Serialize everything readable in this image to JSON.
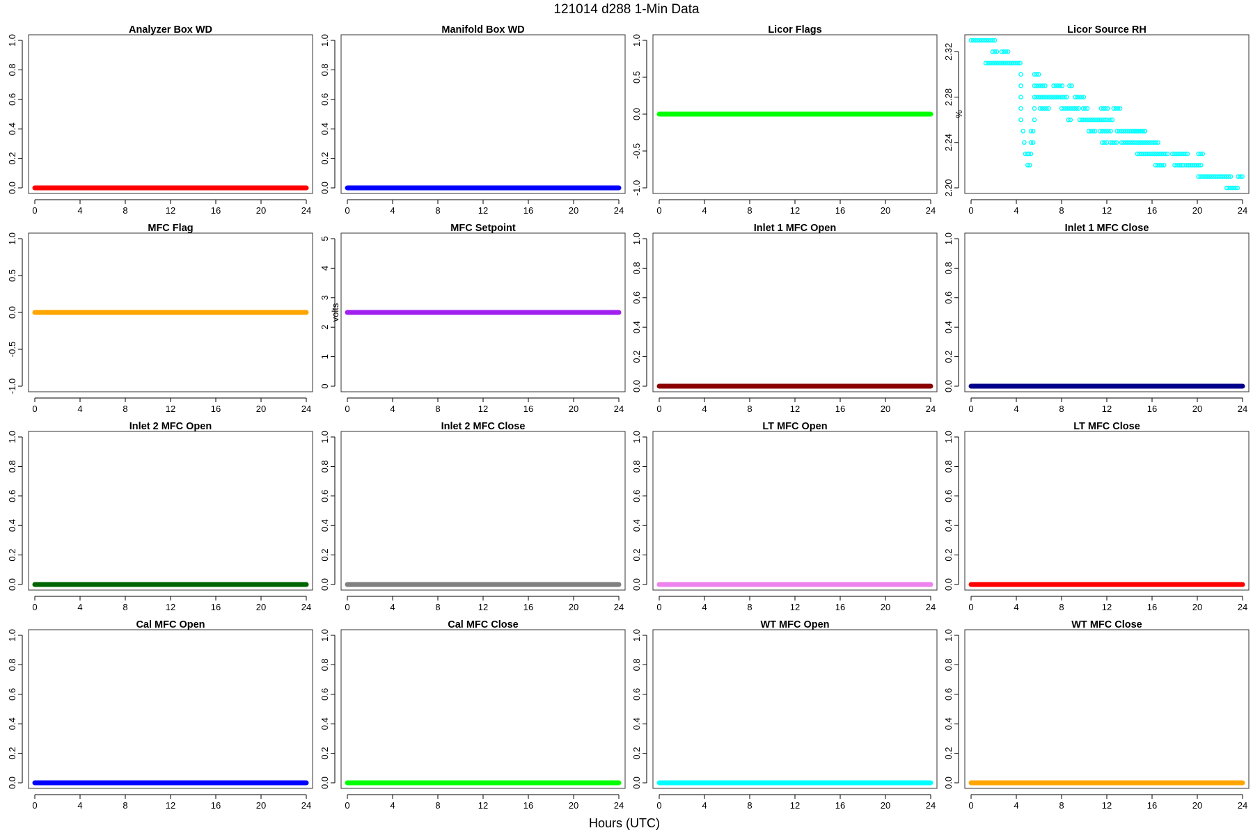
{
  "figure": {
    "title": "121014   d288   1-Min Data",
    "xlabel": "Hours (UTC)"
  },
  "chart_data": [
    {
      "type": "line",
      "title": "Analyzer Box WD",
      "ylabel": "",
      "color": "#ff0000",
      "xlim": [
        0,
        24
      ],
      "xticks": [
        0,
        4,
        8,
        12,
        16,
        20,
        24
      ],
      "ylim": [
        0,
        1
      ],
      "yticks": [
        "0.0",
        "0.2",
        "0.4",
        "0.6",
        "0.8",
        "1.0"
      ],
      "series": [
        {
          "x": [
            0,
            24
          ],
          "y": [
            0,
            0
          ]
        }
      ]
    },
    {
      "type": "line",
      "title": "Manifold Box WD",
      "ylabel": "",
      "color": "#0000ff",
      "xlim": [
        0,
        24
      ],
      "xticks": [
        0,
        4,
        8,
        12,
        16,
        20,
        24
      ],
      "ylim": [
        0,
        1
      ],
      "yticks": [
        "0.0",
        "0.2",
        "0.4",
        "0.6",
        "0.8",
        "1.0"
      ],
      "series": [
        {
          "x": [
            0,
            24
          ],
          "y": [
            0,
            0
          ]
        }
      ]
    },
    {
      "type": "line",
      "title": "Licor Flags",
      "ylabel": "",
      "color": "#00ff00",
      "xlim": [
        0,
        24
      ],
      "xticks": [
        0,
        4,
        8,
        12,
        16,
        20,
        24
      ],
      "ylim": [
        -1,
        1
      ],
      "yticks": [
        "-1.0",
        "-0.5",
        "0.0",
        "0.5",
        "1.0"
      ],
      "series": [
        {
          "x": [
            0,
            24
          ],
          "y": [
            0,
            0
          ]
        }
      ]
    },
    {
      "type": "scatter",
      "title": "Licor Source RH",
      "ylabel": "%",
      "color": "#00ffff",
      "xlim": [
        0,
        24
      ],
      "xticks": [
        0,
        4,
        8,
        12,
        16,
        20,
        24
      ],
      "ylim": [
        2.2,
        2.33
      ],
      "yticks": [
        "2.20",
        "2.24",
        "2.28",
        "2.32"
      ],
      "segments": [
        [
          0,
          2.2,
          2.33
        ],
        [
          1.9,
          2.4,
          2.32
        ],
        [
          2.7,
          3.3,
          2.32
        ],
        [
          1.3,
          4.5,
          2.31
        ],
        [
          4.4,
          4.5,
          2.3
        ],
        [
          5.6,
          6.1,
          2.3
        ],
        [
          4.4,
          4.5,
          2.29
        ],
        [
          5.6,
          6.6,
          2.29
        ],
        [
          7.3,
          8.1,
          2.29
        ],
        [
          8.7,
          9.0,
          2.29
        ],
        [
          4.4,
          4.5,
          2.28
        ],
        [
          5.6,
          8.6,
          2.28
        ],
        [
          9.2,
          10.0,
          2.28
        ],
        [
          4.4,
          4.5,
          2.27
        ],
        [
          5.6,
          5.7,
          2.27
        ],
        [
          6.1,
          7.0,
          2.27
        ],
        [
          8.0,
          9.6,
          2.27
        ],
        [
          9.9,
          10.4,
          2.27
        ],
        [
          11.5,
          12.1,
          2.27
        ],
        [
          12.6,
          13.3,
          2.27
        ],
        [
          4.4,
          4.5,
          2.26
        ],
        [
          5.6,
          5.7,
          2.26
        ],
        [
          8.6,
          8.9,
          2.26
        ],
        [
          9.6,
          12.1,
          2.26
        ],
        [
          12.3,
          12.6,
          2.26
        ],
        [
          4.6,
          4.7,
          2.25
        ],
        [
          5.3,
          5.5,
          2.25
        ],
        [
          10.4,
          11.0,
          2.25
        ],
        [
          11.4,
          12.4,
          2.25
        ],
        [
          12.9,
          15.4,
          2.25
        ],
        [
          14.4,
          15.4,
          2.25
        ],
        [
          4.7,
          4.8,
          2.24
        ],
        [
          5.3,
          5.5,
          2.24
        ],
        [
          11.6,
          12.0,
          2.24
        ],
        [
          12.3,
          13.0,
          2.24
        ],
        [
          13.3,
          16.6,
          2.24
        ],
        [
          4.8,
          5.0,
          2.23
        ],
        [
          5.1,
          5.4,
          2.23
        ],
        [
          14.7,
          17.5,
          2.23
        ],
        [
          17.8,
          19.3,
          2.23
        ],
        [
          20.1,
          20.5,
          2.23
        ],
        [
          5.0,
          5.2,
          2.22
        ],
        [
          16.3,
          17.2,
          2.22
        ],
        [
          18.0,
          18.8,
          2.22
        ],
        [
          19.0,
          20.4,
          2.22
        ],
        [
          20.1,
          23.0,
          2.21
        ],
        [
          23.6,
          24.0,
          2.21
        ],
        [
          22.6,
          23.6,
          2.2
        ]
      ]
    },
    {
      "type": "line",
      "title": "MFC Flag",
      "ylabel": "",
      "color": "#ffa500",
      "xlim": [
        0,
        24
      ],
      "xticks": [
        0,
        4,
        8,
        12,
        16,
        20,
        24
      ],
      "ylim": [
        -1,
        1
      ],
      "yticks": [
        "-1.0",
        "-0.5",
        "0.0",
        "0.5",
        "1.0"
      ],
      "series": [
        {
          "x": [
            0,
            24
          ],
          "y": [
            0,
            0
          ]
        }
      ]
    },
    {
      "type": "line",
      "title": "MFC Setpoint",
      "ylabel": "volts",
      "color": "#a020f0",
      "xlim": [
        0,
        24
      ],
      "xticks": [
        0,
        4,
        8,
        12,
        16,
        20,
        24
      ],
      "ylim": [
        0,
        5
      ],
      "yticks": [
        "0",
        "1",
        "2",
        "3",
        "4",
        "5"
      ],
      "series": [
        {
          "x": [
            0,
            24
          ],
          "y": [
            2.5,
            2.5
          ]
        }
      ]
    },
    {
      "type": "line",
      "title": "Inlet 1 MFC Open",
      "ylabel": "",
      "color": "#8b0000",
      "xlim": [
        0,
        24
      ],
      "xticks": [
        0,
        4,
        8,
        12,
        16,
        20,
        24
      ],
      "ylim": [
        0,
        1
      ],
      "yticks": [
        "0.0",
        "0.2",
        "0.4",
        "0.6",
        "0.8",
        "1.0"
      ],
      "series": [
        {
          "x": [
            0,
            24
          ],
          "y": [
            0,
            0
          ]
        }
      ]
    },
    {
      "type": "line",
      "title": "Inlet 1 MFC Close",
      "ylabel": "",
      "color": "#00008b",
      "xlim": [
        0,
        24
      ],
      "xticks": [
        0,
        4,
        8,
        12,
        16,
        20,
        24
      ],
      "ylim": [
        0,
        1
      ],
      "yticks": [
        "0.0",
        "0.2",
        "0.4",
        "0.6",
        "0.8",
        "1.0"
      ],
      "series": [
        {
          "x": [
            0,
            24
          ],
          "y": [
            0,
            0
          ]
        }
      ]
    },
    {
      "type": "line",
      "title": "Inlet 2 MFC Open",
      "ylabel": "",
      "color": "#006400",
      "xlim": [
        0,
        24
      ],
      "xticks": [
        0,
        4,
        8,
        12,
        16,
        20,
        24
      ],
      "ylim": [
        0,
        1
      ],
      "yticks": [
        "0.0",
        "0.2",
        "0.4",
        "0.6",
        "0.8",
        "1.0"
      ],
      "series": [
        {
          "x": [
            0,
            24
          ],
          "y": [
            0,
            0
          ]
        }
      ]
    },
    {
      "type": "line",
      "title": "Inlet 2 MFC Close",
      "ylabel": "",
      "color": "#808080",
      "xlim": [
        0,
        24
      ],
      "xticks": [
        0,
        4,
        8,
        12,
        16,
        20,
        24
      ],
      "ylim": [
        0,
        1
      ],
      "yticks": [
        "0.0",
        "0.2",
        "0.4",
        "0.6",
        "0.8",
        "1.0"
      ],
      "series": [
        {
          "x": [
            0,
            24
          ],
          "y": [
            0,
            0
          ]
        }
      ]
    },
    {
      "type": "line",
      "title": "LT MFC Open",
      "ylabel": "",
      "color": "#ee82ee",
      "xlim": [
        0,
        24
      ],
      "xticks": [
        0,
        4,
        8,
        12,
        16,
        20,
        24
      ],
      "ylim": [
        0,
        1
      ],
      "yticks": [
        "0.0",
        "0.2",
        "0.4",
        "0.6",
        "0.8",
        "1.0"
      ],
      "series": [
        {
          "x": [
            0,
            24
          ],
          "y": [
            0,
            0
          ]
        }
      ]
    },
    {
      "type": "line",
      "title": "LT MFC Close",
      "ylabel": "",
      "color": "#ff0000",
      "xlim": [
        0,
        24
      ],
      "xticks": [
        0,
        4,
        8,
        12,
        16,
        20,
        24
      ],
      "ylim": [
        0,
        1
      ],
      "yticks": [
        "0.0",
        "0.2",
        "0.4",
        "0.6",
        "0.8",
        "1.0"
      ],
      "series": [
        {
          "x": [
            0,
            24
          ],
          "y": [
            0,
            0
          ]
        }
      ]
    },
    {
      "type": "line",
      "title": "Cal MFC Open",
      "ylabel": "",
      "color": "#0000ff",
      "xlim": [
        0,
        24
      ],
      "xticks": [
        0,
        4,
        8,
        12,
        16,
        20,
        24
      ],
      "ylim": [
        0,
        1
      ],
      "yticks": [
        "0.0",
        "0.2",
        "0.4",
        "0.6",
        "0.8",
        "1.0"
      ],
      "series": [
        {
          "x": [
            0,
            24
          ],
          "y": [
            0,
            0
          ]
        }
      ]
    },
    {
      "type": "line",
      "title": "Cal MFC Close",
      "ylabel": "",
      "color": "#00ff00",
      "xlim": [
        0,
        24
      ],
      "xticks": [
        0,
        4,
        8,
        12,
        16,
        20,
        24
      ],
      "ylim": [
        0,
        1
      ],
      "yticks": [
        "0.0",
        "0.2",
        "0.4",
        "0.6",
        "0.8",
        "1.0"
      ],
      "series": [
        {
          "x": [
            0,
            24
          ],
          "y": [
            0,
            0
          ]
        }
      ]
    },
    {
      "type": "line",
      "title": "WT MFC Open",
      "ylabel": "",
      "color": "#00ffff",
      "xlim": [
        0,
        24
      ],
      "xticks": [
        0,
        4,
        8,
        12,
        16,
        20,
        24
      ],
      "ylim": [
        0,
        1
      ],
      "yticks": [
        "0.0",
        "0.2",
        "0.4",
        "0.6",
        "0.8",
        "1.0"
      ],
      "series": [
        {
          "x": [
            0,
            24
          ],
          "y": [
            0,
            0
          ]
        }
      ]
    },
    {
      "type": "line",
      "title": "WT MFC Close",
      "ylabel": "",
      "color": "#ffa500",
      "xlim": [
        0,
        24
      ],
      "xticks": [
        0,
        4,
        8,
        12,
        16,
        20,
        24
      ],
      "ylim": [
        0,
        1
      ],
      "yticks": [
        "0.0",
        "0.2",
        "0.4",
        "0.6",
        "0.8",
        "1.0"
      ],
      "series": [
        {
          "x": [
            0,
            24
          ],
          "y": [
            0,
            0
          ]
        }
      ]
    }
  ]
}
